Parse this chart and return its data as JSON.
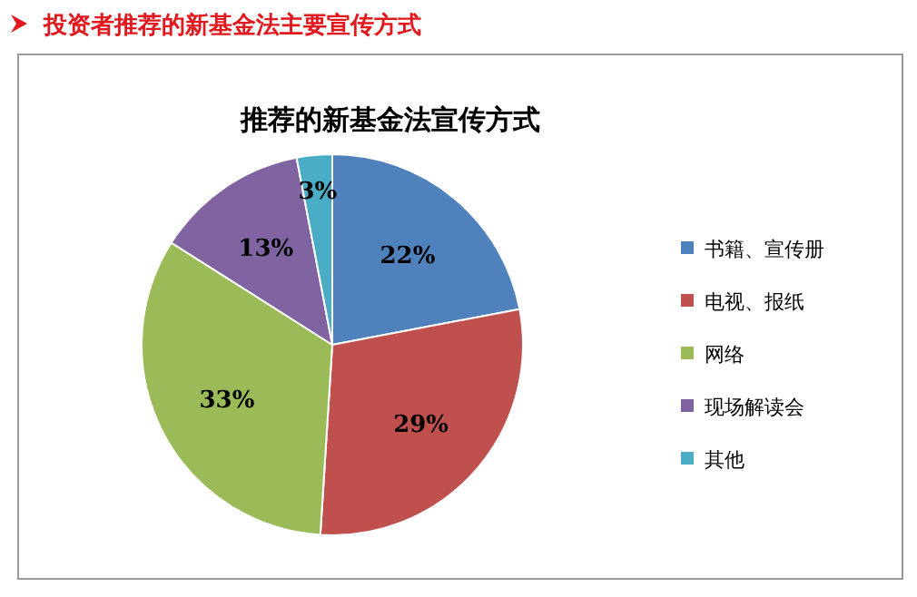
{
  "chart_data": {
    "type": "pie",
    "title": "投资者推荐的新基金法主要宣传方式",
    "subtitle": "推荐的新基金法宣传方式",
    "categories": [
      "书籍、宣传册",
      "电视、报纸",
      "网络",
      "现场解读会",
      "其他"
    ],
    "values": [
      22,
      29,
      33,
      13,
      3
    ],
    "value_labels": [
      "22%",
      "29%",
      "33%",
      "13%",
      "3%"
    ],
    "colors": [
      "#4f81bd",
      "#c0504d",
      "#9bbb59",
      "#8064a2",
      "#4bacc6"
    ],
    "legend": "right"
  }
}
